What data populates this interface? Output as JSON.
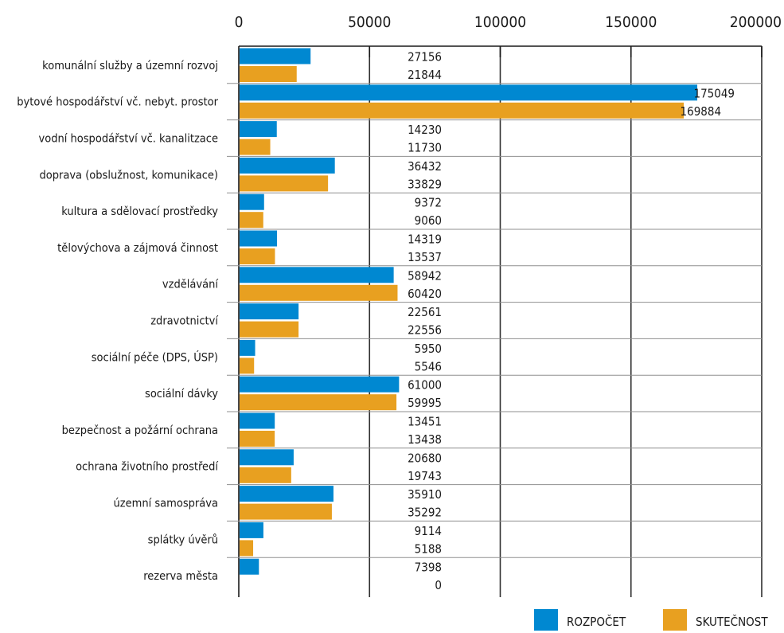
{
  "chart_data": {
    "type": "bar",
    "orientation": "horizontal",
    "x_axis_position": "top",
    "xlim": [
      0,
      200000
    ],
    "xticks": [
      "0",
      "50000",
      "100000",
      "150000",
      "200000"
    ],
    "grid": true,
    "legend_position": "bottom-right",
    "categories": [
      "komunální služby a územní rozvoj",
      "bytové hospodářství vč. nebyt. prostor",
      "vodní hospodářství vč. kanalitzace",
      "doprava (obslužnost, komunikace)",
      "kultura a sdělovací prostředky",
      "tělovýchova a zájmová činnost",
      "vzdělávání",
      "zdravotnictví",
      "sociální péče (DPS, ÚSP)",
      "sociální dávky",
      "bezpečnost  a požární ochrana",
      "ochrana životního prostředí",
      "územní samospráva",
      "splátky úvěrů",
      "rezerva města"
    ],
    "series": [
      {
        "name": "ROZPOČET",
        "color": "#0088d1",
        "values": [
          27156,
          175049,
          14230,
          36432,
          9372,
          14319,
          58942,
          22561,
          5950,
          61000,
          13451,
          20680,
          35910,
          9114,
          7398
        ],
        "labels": [
          "27156",
          "175049",
          "14230",
          "36432",
          "9372",
          "14319",
          "58942",
          "22561",
          "5950",
          "61000",
          "13451",
          "20680",
          "35910",
          "9114",
          "7398"
        ]
      },
      {
        "name": "SKUTEČNOST",
        "color": "#e8a020",
        "values": [
          21844,
          169884,
          11730,
          33829,
          9060,
          13537,
          60420,
          22556,
          5546,
          59995,
          13438,
          19743,
          35292,
          5188,
          0
        ],
        "labels": [
          "21844",
          "169884",
          "11730",
          "33829",
          "9060",
          "13537",
          "60420",
          "22556",
          "5546",
          "59995",
          "13438",
          "19743",
          "35292",
          "5188",
          "0"
        ]
      }
    ]
  }
}
